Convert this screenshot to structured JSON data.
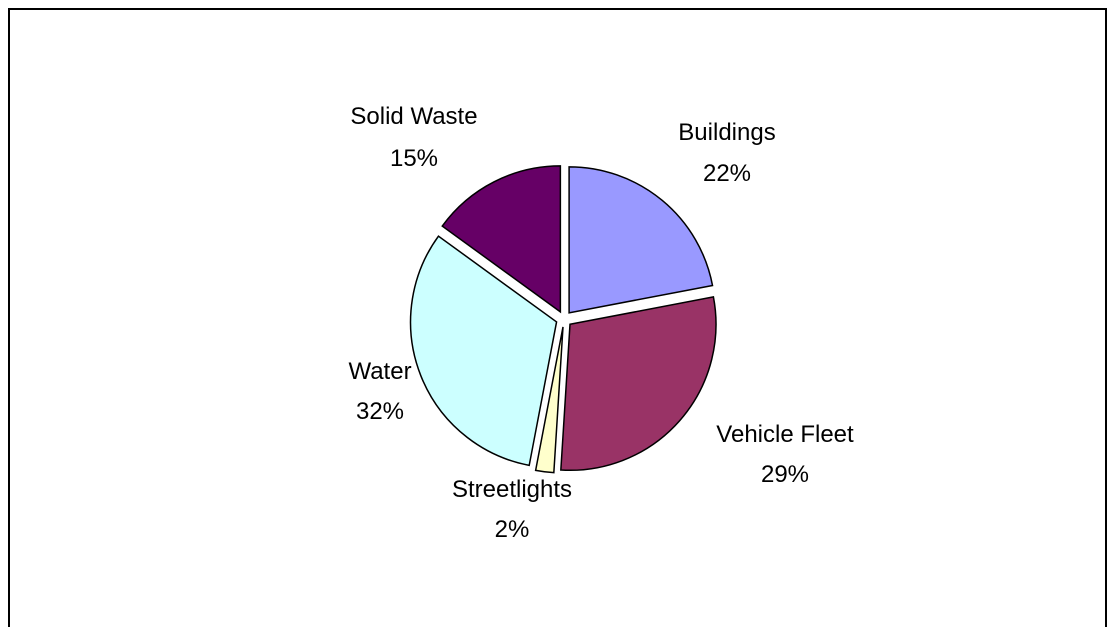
{
  "chart_data": {
    "type": "pie",
    "title": "",
    "slices": [
      {
        "label": "Buildings",
        "value": 22,
        "display": "22%",
        "color": "#9999ff"
      },
      {
        "label": "Vehicle Fleet",
        "value": 29,
        "display": "29%",
        "color": "#993366"
      },
      {
        "label": "Streetlights",
        "value": 2,
        "display": "2%",
        "color": "#ffffcc"
      },
      {
        "label": "Water",
        "value": 32,
        "display": "32%",
        "color": "#ccffff"
      },
      {
        "label": "Solid Waste",
        "value": 15,
        "display": "15%",
        "color": "#660066"
      }
    ],
    "exploded": true,
    "legend": "none",
    "data_labels": "category and percentage"
  }
}
